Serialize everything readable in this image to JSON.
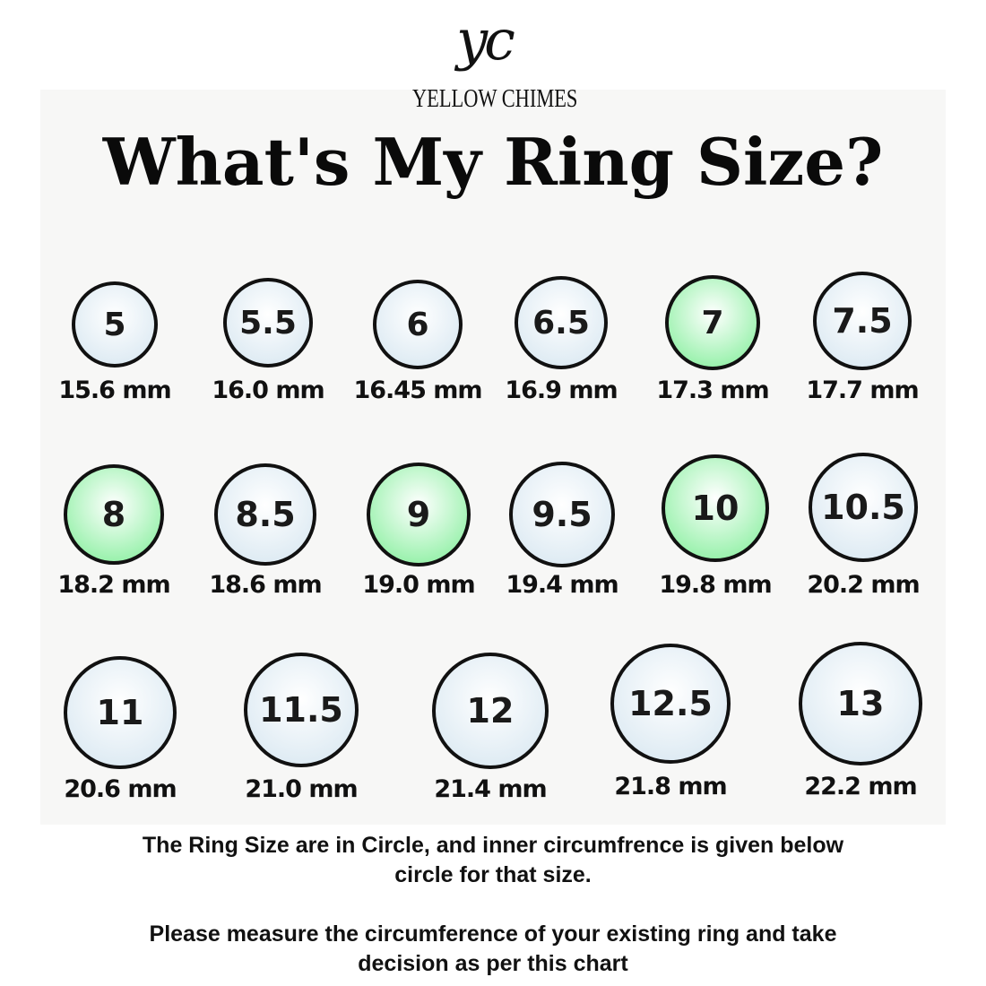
{
  "brand": {
    "logo_mark": "yc",
    "name": "YELLOW CHIMES"
  },
  "title": "What's My Ring Size?",
  "colors": {
    "blue_fill": "#dbe9f2",
    "green_fill": "#8ff0a4",
    "ring_border": "#111111"
  },
  "rings": [
    {
      "size": "5",
      "mm": "15.6 mm",
      "highlighted": false
    },
    {
      "size": "5.5",
      "mm": "16.0 mm",
      "highlighted": false
    },
    {
      "size": "6",
      "mm": "16.45 mm",
      "highlighted": false
    },
    {
      "size": "6.5",
      "mm": "16.9 mm",
      "highlighted": false
    },
    {
      "size": "7",
      "mm": "17.3 mm",
      "highlighted": true
    },
    {
      "size": "7.5",
      "mm": "17.7 mm",
      "highlighted": false
    },
    {
      "size": "8",
      "mm": "18.2 mm",
      "highlighted": true
    },
    {
      "size": "8.5",
      "mm": "18.6 mm",
      "highlighted": false
    },
    {
      "size": "9",
      "mm": "19.0 mm",
      "highlighted": true
    },
    {
      "size": "9.5",
      "mm": "19.4 mm",
      "highlighted": false
    },
    {
      "size": "10",
      "mm": "19.8 mm",
      "highlighted": true
    },
    {
      "size": "10.5",
      "mm": "20.2 mm",
      "highlighted": false
    },
    {
      "size": "11",
      "mm": "20.6 mm",
      "highlighted": false
    },
    {
      "size": "11.5",
      "mm": "21.0 mm",
      "highlighted": false
    },
    {
      "size": "12",
      "mm": "21.4 mm",
      "highlighted": false
    },
    {
      "size": "12.5",
      "mm": "21.8 mm",
      "highlighted": false
    },
    {
      "size": "13",
      "mm": "22.2 mm",
      "highlighted": false
    }
  ],
  "notes": {
    "line1": "The Ring Size are in Circle, and inner circumfrence is  given below",
    "line2": "circle for that size.",
    "line3": "Please measure the circumference of your existing ring and take",
    "line4": "decision as per this chart"
  }
}
